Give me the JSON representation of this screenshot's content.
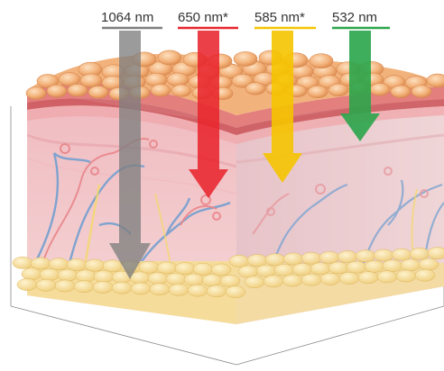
{
  "wavelengths": [
    {
      "label": "1064 nm",
      "color": "#7f7f7f"
    },
    {
      "label": "650 nm*",
      "color": "#e8262d"
    },
    {
      "label": "585 nm*",
      "color": "#f5c400"
    },
    {
      "label": "532 nm",
      "color": "#2aa54a"
    }
  ],
  "skin_colors": {
    "epidermis_cells": "#f3b67d",
    "dermis": "#f1c9cc",
    "fat_layer": "#f6dfa0",
    "vessels_blue": "#7fa3cf",
    "vessels_red": "#e9868a"
  }
}
